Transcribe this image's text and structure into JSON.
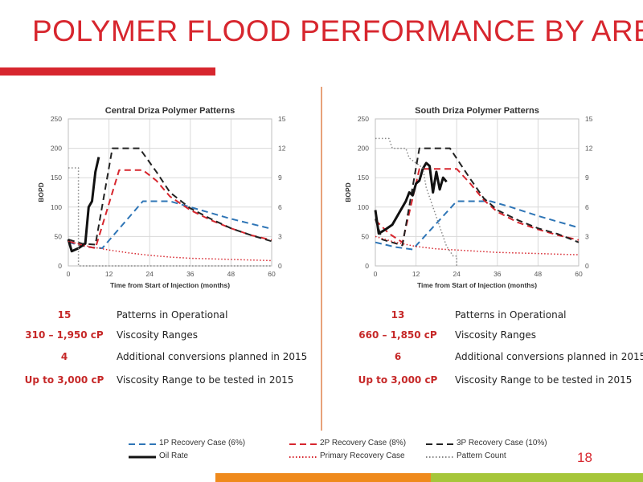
{
  "slide": {
    "title": "POLYMER FLOOD PERFORMANCE BY AREA",
    "page_number": "18",
    "colors": {
      "accent": "#d7262e",
      "footer_orange": "#ef8a1c",
      "footer_green": "#a6c63a"
    }
  },
  "chart_data": [
    {
      "type": "line",
      "title": "Central Driza Polymer Patterns",
      "xlabel": "Time from Start of Injection (months)",
      "ylabel": "BOPD",
      "xlim": [
        0,
        60
      ],
      "ylim": [
        0,
        250
      ],
      "y2lim": [
        0,
        15
      ],
      "x_ticks": [
        "0",
        "12",
        "24",
        "36",
        "48",
        "60"
      ],
      "y_ticks": [
        "0",
        "50",
        "100",
        "150",
        "200",
        "250"
      ],
      "y2_ticks": [
        "0",
        "3",
        "6",
        "9",
        "12",
        "15"
      ],
      "grid": true,
      "series": [
        {
          "name": "1P Recovery Case (6%)",
          "color": "#2e75b6",
          "style": "dashed",
          "x": [
            0,
            6,
            10,
            22,
            30,
            36,
            48,
            60
          ],
          "y": [
            40,
            32,
            30,
            110,
            110,
            100,
            80,
            63
          ]
        },
        {
          "name": "2P Recovery Case (8%)",
          "color": "#d7262e",
          "style": "dashed",
          "x": [
            0,
            4,
            8,
            15,
            22,
            26,
            30,
            36,
            42,
            48,
            54,
            60
          ],
          "y": [
            42,
            35,
            30,
            163,
            163,
            145,
            118,
            95,
            78,
            64,
            52,
            44
          ]
        },
        {
          "name": "3P Recovery Case (10%)",
          "color": "#222222",
          "style": "dashed",
          "x": [
            0,
            4,
            8,
            13,
            21,
            26,
            30,
            36,
            42,
            48,
            54,
            60
          ],
          "y": [
            45,
            38,
            36,
            200,
            200,
            160,
            125,
            98,
            80,
            64,
            52,
            42
          ]
        },
        {
          "name": "Oil Rate",
          "color": "#111111",
          "style": "solid",
          "x": [
            0,
            1,
            3,
            5,
            6,
            7,
            8,
            9
          ],
          "y": [
            45,
            25,
            30,
            38,
            100,
            110,
            160,
            185
          ]
        },
        {
          "name": "Primary Recovery Case",
          "color": "#d7262e",
          "style": "dotted",
          "x": [
            0,
            6,
            12,
            18,
            24,
            30,
            36,
            42,
            48,
            54,
            60
          ],
          "y": [
            42,
            33,
            27,
            22,
            18,
            15,
            13,
            12,
            11,
            10,
            9
          ]
        },
        {
          "name": "Pattern Count",
          "color": "#888888",
          "style": "dotted",
          "axis": "y2",
          "x": [
            0,
            3,
            3,
            60
          ],
          "y": [
            10,
            10,
            0,
            0
          ]
        }
      ]
    },
    {
      "type": "line",
      "title": "South Driza Polymer Patterns",
      "xlabel": "Time from Start of Injection (months)",
      "ylabel": "BOPD",
      "xlim": [
        0,
        60
      ],
      "ylim": [
        0,
        250
      ],
      "y2lim": [
        0,
        15
      ],
      "x_ticks": [
        "0",
        "12",
        "24",
        "36",
        "48",
        "60"
      ],
      "y_ticks": [
        "0",
        "50",
        "100",
        "150",
        "200",
        "250"
      ],
      "y2_ticks": [
        "0",
        "3",
        "6",
        "9",
        "12",
        "15"
      ],
      "grid": true,
      "series": [
        {
          "name": "1P Recovery Case (6%)",
          "color": "#2e75b6",
          "style": "dashed",
          "x": [
            0,
            6,
            11,
            24,
            34,
            40,
            48,
            60
          ],
          "y": [
            40,
            32,
            28,
            110,
            110,
            100,
            85,
            65
          ]
        },
        {
          "name": "2P Recovery Case (8%)",
          "color": "#d7262e",
          "style": "dashed",
          "x": [
            0,
            4,
            8,
            13,
            24,
            28,
            32,
            36,
            42,
            48,
            54,
            60
          ],
          "y": [
            78,
            55,
            40,
            165,
            165,
            140,
            112,
            92,
            74,
            62,
            52,
            44
          ]
        },
        {
          "name": "3P Recovery Case (10%)",
          "color": "#222222",
          "style": "dashed",
          "x": [
            0,
            2,
            8,
            13,
            22,
            28,
            32,
            36,
            42,
            48,
            54,
            60
          ],
          "y": [
            80,
            45,
            35,
            200,
            200,
            148,
            115,
            95,
            78,
            64,
            54,
            40
          ]
        },
        {
          "name": "Oil Rate",
          "color": "#111111",
          "style": "solid",
          "x": [
            0,
            1,
            3,
            5,
            7,
            9,
            10,
            11,
            12,
            13,
            14,
            15,
            16,
            17,
            18,
            19,
            20,
            21
          ],
          "y": [
            95,
            55,
            62,
            70,
            90,
            110,
            125,
            120,
            140,
            145,
            165,
            175,
            170,
            125,
            160,
            130,
            150,
            143
          ]
        },
        {
          "name": "Primary Recovery Case",
          "color": "#d7262e",
          "style": "dotted",
          "x": [
            0,
            6,
            12,
            18,
            24,
            30,
            36,
            42,
            48,
            54,
            60
          ],
          "y": [
            50,
            40,
            33,
            29,
            27,
            25,
            23,
            22,
            21,
            20,
            19
          ]
        },
        {
          "name": "Pattern Count",
          "color": "#888888",
          "style": "dotted",
          "axis": "y2",
          "x": [
            0,
            4,
            5,
            9,
            10,
            14,
            15,
            17,
            19,
            21,
            23,
            24,
            24
          ],
          "y": [
            13,
            13,
            12,
            12,
            11,
            10,
            8,
            6,
            4,
            2,
            1,
            1,
            0
          ]
        }
      ]
    }
  ],
  "info_left": [
    {
      "value": "15",
      "label": "Patterns in Operational"
    },
    {
      "value": "310 –  1,950 cP",
      "label": "Viscosity Ranges"
    },
    {
      "value": "4",
      "label": "Additional conversions planned in 2015"
    },
    {
      "value": "Up to 3,000 cP",
      "label": "Viscosity Range to be tested in 2015"
    }
  ],
  "info_right": [
    {
      "value": "13",
      "label": "Patterns in Operational"
    },
    {
      "value": "660 – 1,850 cP",
      "label": "Viscosity Ranges"
    },
    {
      "value": "6",
      "label": "Additional conversions planned in 2015"
    },
    {
      "value": "Up to 3,000 cP",
      "label": "Viscosity Range to be tested in 2015"
    }
  ],
  "legend": [
    {
      "label": "1P Recovery Case (6%)",
      "color": "#2e75b6",
      "style": "dashed"
    },
    {
      "label": "2P Recovery Case (8%)",
      "color": "#d7262e",
      "style": "dashed"
    },
    {
      "label": "3P Recovery Case (10%)",
      "color": "#222222",
      "style": "dashed"
    },
    {
      "label": "Oil Rate",
      "color": "#111111",
      "style": "solid"
    },
    {
      "label": "Primary Recovery Case",
      "color": "#d7262e",
      "style": "dotted"
    },
    {
      "label": "Pattern Count",
      "color": "#888888",
      "style": "dotted"
    }
  ]
}
